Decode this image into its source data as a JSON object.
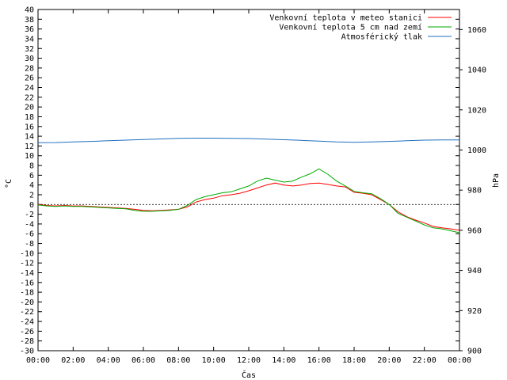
{
  "chart_data": {
    "type": "line",
    "xlabel": "Čas",
    "ylabel_left": "°C",
    "ylabel_right": "hPa",
    "y_left_range": [
      -30,
      40
    ],
    "y_left_ticks": [
      40,
      38,
      36,
      34,
      32,
      30,
      28,
      26,
      24,
      22,
      20,
      18,
      16,
      14,
      12,
      10,
      8,
      6,
      4,
      2,
      0,
      -2,
      -4,
      -6,
      -8,
      -10,
      -12,
      -14,
      -16,
      -18,
      -20,
      -22,
      -24,
      -26,
      -28,
      -30
    ],
    "y_right_range": [
      900,
      1070
    ],
    "y_right_ticks": [
      1060,
      1040,
      1020,
      1000,
      980,
      960,
      940,
      920,
      900
    ],
    "x_range_hours": [
      0,
      24
    ],
    "x_ticks": [
      {
        "hour": 0,
        "label": "00:00"
      },
      {
        "hour": 2,
        "label": "02:00"
      },
      {
        "hour": 4,
        "label": "04:00"
      },
      {
        "hour": 6,
        "label": "06:00"
      },
      {
        "hour": 8,
        "label": "08:00"
      },
      {
        "hour": 10,
        "label": "10:00"
      },
      {
        "hour": 12,
        "label": "12:00"
      },
      {
        "hour": 14,
        "label": "14:00"
      },
      {
        "hour": 16,
        "label": "16:00"
      },
      {
        "hour": 18,
        "label": "18:00"
      },
      {
        "hour": 20,
        "label": "20:00"
      },
      {
        "hour": 22,
        "label": "22:00"
      },
      {
        "hour": 24,
        "label": "00:00"
      }
    ],
    "grid": false,
    "legend_position": "top-right",
    "series": [
      {
        "name": "Venkovní teplota v meteo stanici",
        "color": "#ff0000",
        "axis": "left",
        "x": [
          0,
          0.5,
          1,
          1.5,
          2,
          2.5,
          3,
          3.5,
          4,
          4.5,
          5,
          5.5,
          6,
          6.5,
          7,
          7.5,
          8,
          8.5,
          9,
          9.5,
          10,
          10.5,
          11,
          11.5,
          12,
          12.5,
          13,
          13.5,
          14,
          14.5,
          15,
          15.5,
          16,
          16.5,
          17,
          17.5,
          18,
          18.5,
          19,
          19.5,
          20,
          20.5,
          21,
          21.5,
          22,
          22.5,
          23,
          23.5,
          24
        ],
        "y": [
          0,
          -0.2,
          -0.3,
          -0.2,
          -0.3,
          -0.3,
          -0.4,
          -0.5,
          -0.6,
          -0.7,
          -0.8,
          -1.0,
          -1.2,
          -1.3,
          -1.2,
          -1.1,
          -1.0,
          -0.5,
          0.5,
          1.0,
          1.3,
          1.8,
          2.0,
          2.3,
          2.8,
          3.4,
          4.0,
          4.4,
          4.0,
          3.8,
          4.0,
          4.3,
          4.4,
          4.1,
          3.8,
          3.6,
          2.5,
          2.3,
          2.0,
          1.0,
          0,
          -1.5,
          -2.5,
          -3.2,
          -3.8,
          -4.5,
          -4.8,
          -5.0,
          -5.3
        ]
      },
      {
        "name": "Venkovní teplota 5 cm nad zemí",
        "color": "#00aa00",
        "axis": "left",
        "x": [
          0,
          0.5,
          1,
          1.5,
          2,
          2.5,
          3,
          3.5,
          4,
          4.5,
          5,
          5.5,
          6,
          6.5,
          7,
          7.5,
          8,
          8.5,
          9,
          9.5,
          10,
          10.5,
          11,
          11.5,
          12,
          12.5,
          13,
          13.5,
          14,
          14.5,
          15,
          15.5,
          16,
          16.5,
          17,
          17.5,
          18,
          18.5,
          19,
          19.5,
          20,
          20.5,
          21,
          21.5,
          22,
          22.5,
          23,
          23.5,
          24
        ],
        "y": [
          -0.1,
          -0.3,
          -0.4,
          -0.3,
          -0.4,
          -0.4,
          -0.5,
          -0.6,
          -0.7,
          -0.8,
          -0.9,
          -1.2,
          -1.4,
          -1.4,
          -1.3,
          -1.2,
          -1.0,
          -0.2,
          1.0,
          1.6,
          2.0,
          2.4,
          2.6,
          3.2,
          3.8,
          4.8,
          5.4,
          5.0,
          4.6,
          4.8,
          5.6,
          6.3,
          7.3,
          6.2,
          4.8,
          3.8,
          2.7,
          2.4,
          2.2,
          1.2,
          0,
          -1.8,
          -2.6,
          -3.4,
          -4.2,
          -4.8,
          -5.0,
          -5.4,
          -5.8
        ]
      },
      {
        "name": "Atmosférický tlak",
        "color": "#1f6fbf",
        "axis": "right",
        "x": [
          0,
          1,
          2,
          3,
          4,
          5,
          6,
          7,
          8,
          9,
          10,
          11,
          12,
          13,
          14,
          15,
          16,
          17,
          18,
          19,
          20,
          21,
          22,
          23,
          24
        ],
        "y": [
          1003.6,
          1003.7,
          1004.0,
          1004.3,
          1004.6,
          1004.9,
          1005.2,
          1005.5,
          1005.8,
          1005.9,
          1005.9,
          1005.8,
          1005.7,
          1005.4,
          1005.1,
          1004.8,
          1004.4,
          1004.0,
          1003.8,
          1004.0,
          1004.3,
          1004.6,
          1004.9,
          1005.0,
          1005.0
        ]
      }
    ]
  }
}
